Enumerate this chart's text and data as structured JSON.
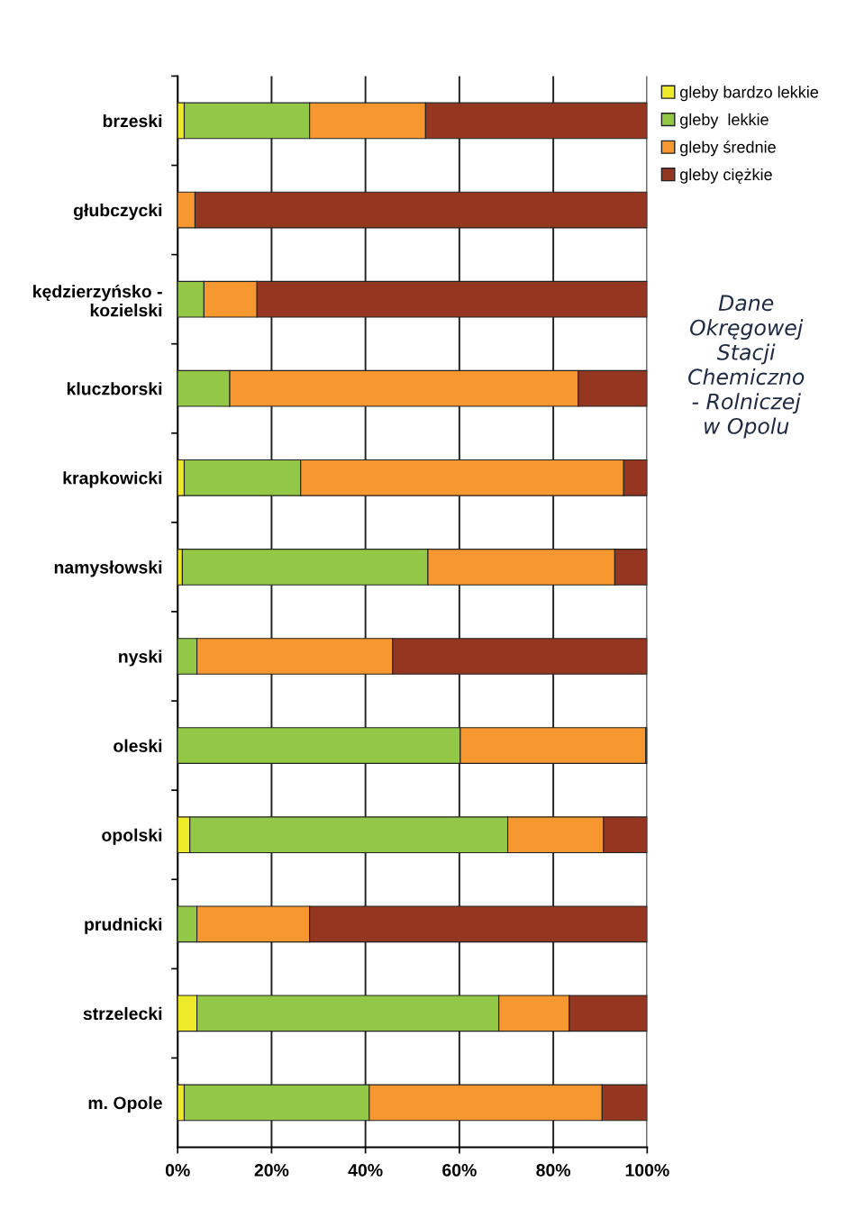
{
  "chart_data": {
    "type": "bar",
    "orientation": "horizontal",
    "stacked": true,
    "categories": [
      "brzeski",
      "głubczycki",
      "kędzierzyńsko -\nkozielski",
      "kluczborski",
      "krapkowicki",
      "namysłowski",
      "nyski",
      "oleski",
      "opolski",
      "prudnicki",
      "strzelecki",
      "m. Opole"
    ],
    "series": [
      {
        "name": "gleby bardzo lekkie",
        "color": "#eeea2a",
        "values": [
          1.4,
          0,
          0,
          0,
          1.4,
          1.0,
          0,
          0,
          2.6,
          0,
          4.1,
          1.4
        ]
      },
      {
        "name": "gleby  lekkie",
        "color": "#92c846",
        "values": [
          26.7,
          0,
          5.6,
          11.1,
          24.8,
          52.3,
          4.1,
          60.2,
          67.7,
          4.1,
          64.3,
          39.4
        ]
      },
      {
        "name": "gleby średnie",
        "color": "#f7972f",
        "values": [
          24.7,
          3.7,
          11.3,
          74.2,
          68.8,
          39.8,
          41.7,
          39.5,
          20.4,
          24.0,
          15.0,
          49.6
        ]
      },
      {
        "name": "gleby ciężkie",
        "color": "#953621",
        "values": [
          47.2,
          96.3,
          83.1,
          14.7,
          5.0,
          6.9,
          54.2,
          0.3,
          9.3,
          71.9,
          16.6,
          9.6
        ]
      }
    ],
    "xlim": [
      0,
      100
    ],
    "xticks": [
      {
        "value": 0,
        "label": "0%"
      },
      {
        "value": 20,
        "label": "20%"
      },
      {
        "value": 40,
        "label": "40%"
      },
      {
        "value": 60,
        "label": "60%"
      },
      {
        "value": 80,
        "label": "80%"
      },
      {
        "value": 100,
        "label": "100%"
      }
    ],
    "grid": "x",
    "legend": "top right",
    "annotations": [
      "Dane\nOkręgowej\nStacji\nChemiczno\n- Rolniczej\nw Opolu"
    ]
  }
}
